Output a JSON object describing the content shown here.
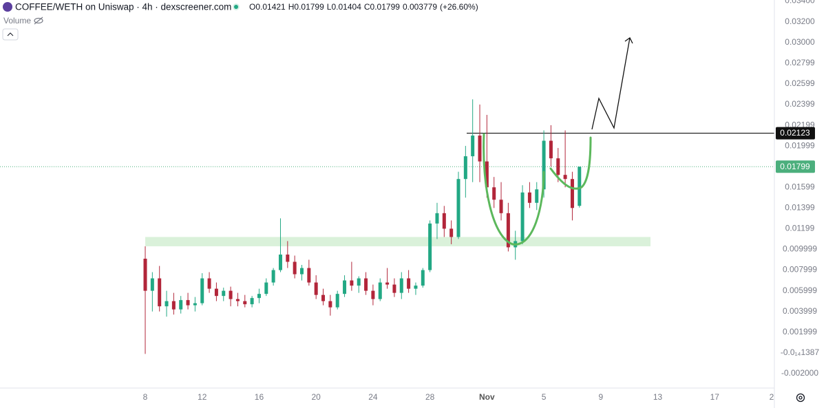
{
  "header": {
    "title": "COFFEE/WETH on Uniswap · 4h · dexscreener.com",
    "ohlc": [
      {
        "key": "O",
        "value": "0.01421"
      },
      {
        "key": "H",
        "value": "0.01799"
      },
      {
        "key": "L",
        "value": "0.01404"
      },
      {
        "key": "C",
        "value": "0.01799"
      }
    ],
    "change": "0.003779",
    "change_pct": "(+26.60%)",
    "volume_label": "Volume"
  },
  "chart_data": {
    "type": "candlestick",
    "up_color": "#22a884",
    "down_color": "#b2263a",
    "grid": false,
    "ylim": [
      -0.0034,
      0.0341
    ],
    "yticks": [
      {
        "value": 0.034,
        "label": "0.03400"
      },
      {
        "value": 0.032,
        "label": "0.03200"
      },
      {
        "value": 0.03,
        "label": "0.03000"
      },
      0.02799,
      0.02599,
      0.02399,
      0.02199,
      0.01999,
      0.01599,
      0.01399,
      0.01199,
      0.009999,
      0.007999,
      0.005999,
      0.003999,
      0.001999,
      {
        "value": -1.387e-15,
        "label": "-0.0₁₄1387"
      },
      {
        "value": -0.002,
        "label": "-0.002000"
      }
    ],
    "categories": [
      "8",
      null,
      null,
      null,
      null,
      null,
      null,
      null,
      "12",
      null,
      null,
      null,
      null,
      null,
      null,
      null,
      "16",
      null,
      null,
      null,
      null,
      null,
      null,
      null,
      "20",
      null,
      null,
      null,
      null,
      null,
      null,
      null,
      "24",
      null,
      null,
      null,
      null,
      null,
      null,
      null,
      "28",
      null,
      null,
      null,
      null,
      null,
      null,
      null,
      "Nov",
      null,
      null,
      null,
      null,
      null,
      null,
      null,
      "5",
      null,
      null,
      null,
      null,
      null,
      null,
      null,
      "9",
      null,
      null,
      null,
      null,
      null,
      null,
      null,
      "13",
      null,
      null,
      null,
      null,
      null,
      null,
      null,
      "17",
      null,
      null,
      null,
      null,
      null,
      null,
      null,
      "2"
    ],
    "open": [
      0.0091,
      0.006,
      0.0072,
      0.0045,
      0.005,
      0.0042,
      0.0051,
      0.0046,
      0.0048,
      0.0072,
      0.0062,
      0.0055,
      0.006,
      0.0052,
      0.005,
      0.0047,
      0.0053,
      0.0057,
      0.0068,
      0.008,
      0.0095,
      0.0088,
      0.0076,
      0.0082,
      0.0068,
      0.0056,
      0.005,
      0.0044,
      0.0057,
      0.007,
      0.0065,
      0.0072,
      0.006,
      0.0052,
      0.0068,
      0.0066,
      0.0058,
      0.0072,
      0.0062,
      0.0065,
      0.008,
      0.0125,
      0.0135,
      0.012,
      0.0112,
      0.0168,
      0.019,
      0.021,
      0.0185,
      0.016,
      0.0148,
      0.0135,
      0.0102,
      0.0108,
      0.0155,
      0.0145,
      0.0158,
      0.0205,
      0.0188,
      0.0172,
      0.0168,
      0.01421,
      null,
      null,
      null,
      null,
      null,
      null,
      null,
      null,
      null,
      null,
      null,
      null,
      null,
      null,
      null,
      null,
      null,
      null,
      null,
      null,
      null,
      null,
      null,
      null,
      null,
      null,
      null
    ],
    "high": [
      0.0103,
      0.0078,
      0.0084,
      0.006,
      0.0058,
      0.0055,
      0.0058,
      0.0054,
      0.0077,
      0.0078,
      0.0068,
      0.0063,
      0.0064,
      0.0058,
      0.0056,
      0.0055,
      0.0062,
      0.0072,
      0.0082,
      0.013,
      0.0108,
      0.0094,
      0.0085,
      0.009,
      0.0075,
      0.0062,
      0.0056,
      0.006,
      0.0075,
      0.0088,
      0.0074,
      0.0078,
      0.0066,
      0.0072,
      0.0082,
      0.0072,
      0.0078,
      0.008,
      0.0068,
      0.0082,
      0.0128,
      0.0145,
      0.0142,
      0.0128,
      0.0175,
      0.02,
      0.0245,
      0.024,
      0.023,
      0.017,
      0.0165,
      0.0145,
      0.0118,
      0.0162,
      0.0165,
      0.0165,
      0.0215,
      0.022,
      0.0198,
      0.0215,
      0.0175,
      0.01799,
      null,
      null,
      null,
      null,
      null,
      null,
      null,
      null,
      null,
      null,
      null,
      null,
      null,
      null,
      null,
      null,
      null,
      null,
      null,
      null,
      null,
      null,
      null,
      null,
      null,
      null,
      null
    ],
    "low": [
      -0.0001,
      0.004,
      0.004,
      0.0035,
      0.0037,
      0.0038,
      0.0042,
      0.004,
      0.0046,
      0.0058,
      0.005,
      0.005,
      0.0045,
      0.0045,
      0.0044,
      0.0044,
      0.0048,
      0.0055,
      0.0065,
      0.0078,
      0.0082,
      0.0072,
      0.007,
      0.0065,
      0.0052,
      0.0046,
      0.0036,
      0.0042,
      0.0054,
      0.006,
      0.0058,
      0.0056,
      0.0046,
      0.005,
      0.0062,
      0.0054,
      0.0052,
      0.0058,
      0.0056,
      0.0063,
      0.0078,
      0.011,
      0.0112,
      0.0105,
      0.011,
      0.015,
      0.0165,
      0.0165,
      0.015,
      0.014,
      0.0128,
      0.0098,
      0.009,
      0.0105,
      0.014,
      0.0138,
      0.015,
      0.018,
      0.0165,
      0.016,
      0.0128,
      0.01404,
      null,
      null,
      null,
      null,
      null,
      null,
      null,
      null,
      null,
      null,
      null,
      null,
      null,
      null,
      null,
      null,
      null,
      null,
      null,
      null,
      null,
      null,
      null,
      null,
      null,
      null,
      null
    ],
    "close": [
      0.006,
      0.0072,
      0.0045,
      0.005,
      0.0042,
      0.0051,
      0.0046,
      0.0048,
      0.0072,
      0.0062,
      0.0055,
      0.006,
      0.0052,
      0.005,
      0.0047,
      0.0053,
      0.0057,
      0.0068,
      0.008,
      0.0095,
      0.0088,
      0.0076,
      0.0082,
      0.0068,
      0.0056,
      0.005,
      0.0044,
      0.0057,
      0.007,
      0.0065,
      0.0072,
      0.006,
      0.0052,
      0.0068,
      0.0066,
      0.0058,
      0.0072,
      0.0062,
      0.0065,
      0.008,
      0.0125,
      0.0135,
      0.012,
      0.0112,
      0.0168,
      0.019,
      0.021,
      0.0185,
      0.016,
      0.0148,
      0.0135,
      0.0102,
      0.0108,
      0.0155,
      0.0145,
      0.0158,
      0.0205,
      0.0188,
      0.0172,
      0.0168,
      0.014,
      0.01799,
      null,
      null,
      null,
      null,
      null,
      null,
      null,
      null,
      null,
      null,
      null,
      null,
      null,
      null,
      null,
      null,
      null,
      null,
      null,
      null,
      null,
      null,
      null,
      null,
      null,
      null,
      null
    ],
    "support_zone": [
      0.0103,
      0.0112
    ],
    "resistance": 0.02123,
    "last_price": 0.01799
  }
}
